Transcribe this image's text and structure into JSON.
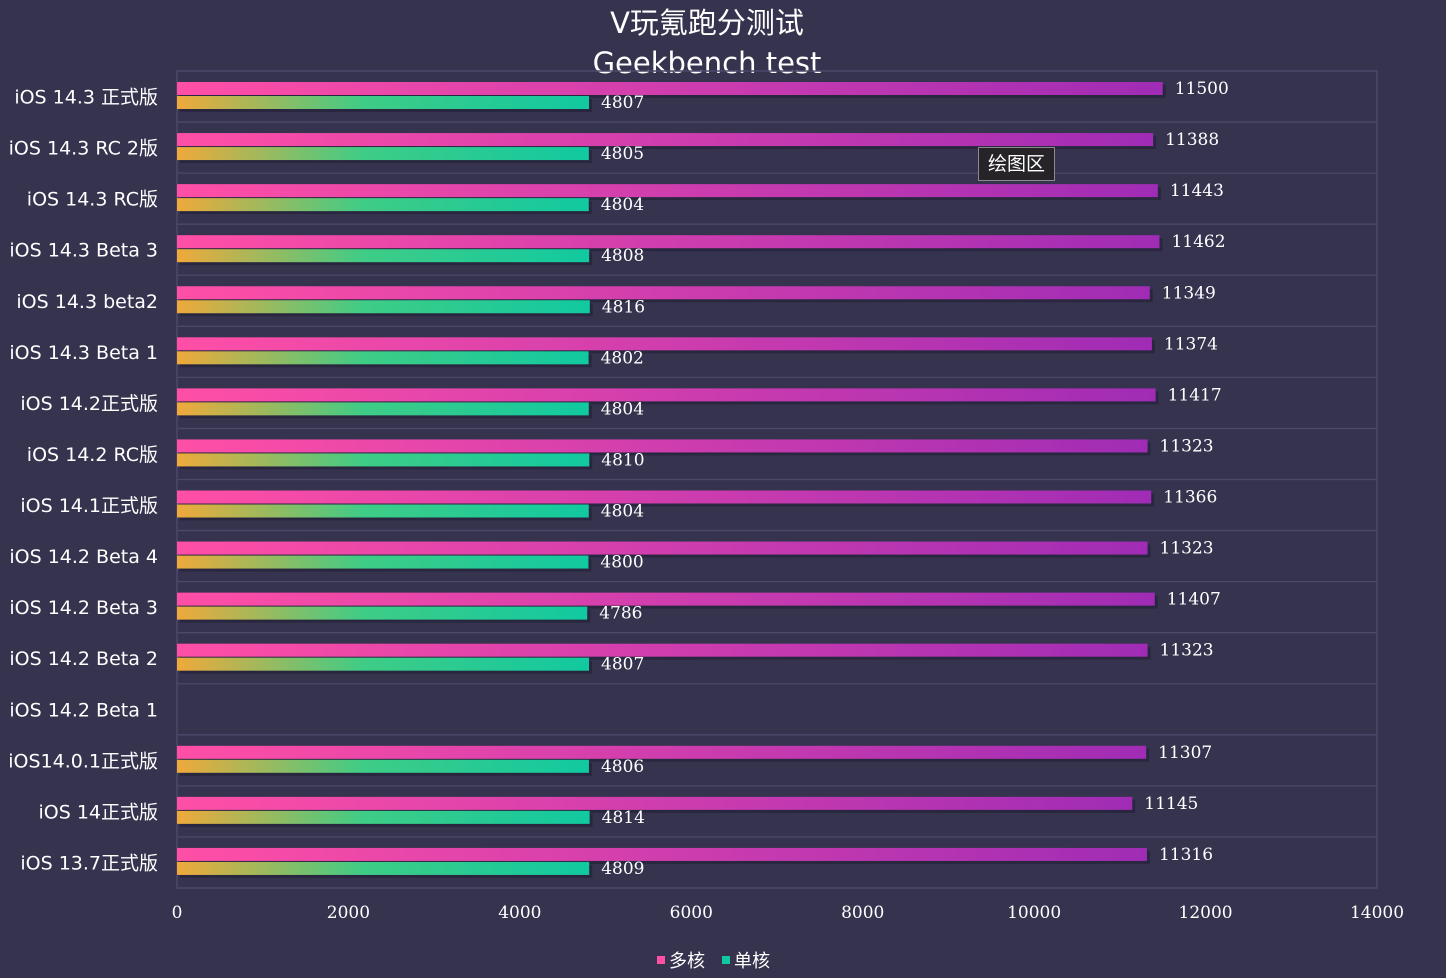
{
  "chart_data": {
    "type": "bar",
    "orientation": "horizontal",
    "title": "V玩氪跑分测试",
    "subtitle": "Geekbench test",
    "categories": [
      "iOS 14.3 正式版",
      "iOS 14.3 RC 2版",
      "iOS 14.3 RC版",
      "iOS 14.3 Beta 3",
      "iOS 14.3 beta2",
      "iOS 14.3 Beta 1",
      "iOS 14.2正式版",
      "iOS 14.2 RC版",
      "iOS 14.1正式版",
      "iOS 14.2 Beta 4",
      "iOS 14.2 Beta 3",
      "iOS 14.2 Beta 2",
      "iOS 14.2 Beta 1",
      "iOS14.0.1正式版",
      "iOS 14正式版",
      "iOS 13.7正式版"
    ],
    "series": [
      {
        "name": "多核",
        "color": "#e040a0",
        "values": [
          11500,
          11388,
          11443,
          11462,
          11349,
          11374,
          11417,
          11323,
          11366,
          11323,
          11407,
          11323,
          null,
          11307,
          11145,
          11316
        ]
      },
      {
        "name": "单核",
        "color": "#1dc89a",
        "values": [
          4807,
          4805,
          4804,
          4808,
          4816,
          4802,
          4804,
          4810,
          4804,
          4800,
          4786,
          4807,
          null,
          4806,
          4814,
          4809
        ]
      }
    ],
    "xlim": [
      0,
      14000
    ],
    "xticks": [
      0,
      2000,
      4000,
      6000,
      8000,
      10000,
      12000,
      14000
    ],
    "xlabel": "",
    "ylabel": "",
    "grid": true,
    "legend_position": "bottom"
  },
  "tooltip": {
    "text": "绘图区"
  },
  "colors": {
    "background": "#36334f",
    "grid": "#4b4868",
    "multi_start": "#ff4fa6",
    "multi_end": "#a02cb5",
    "single_start": "#f0a93a",
    "single_end": "#11c9a0"
  }
}
